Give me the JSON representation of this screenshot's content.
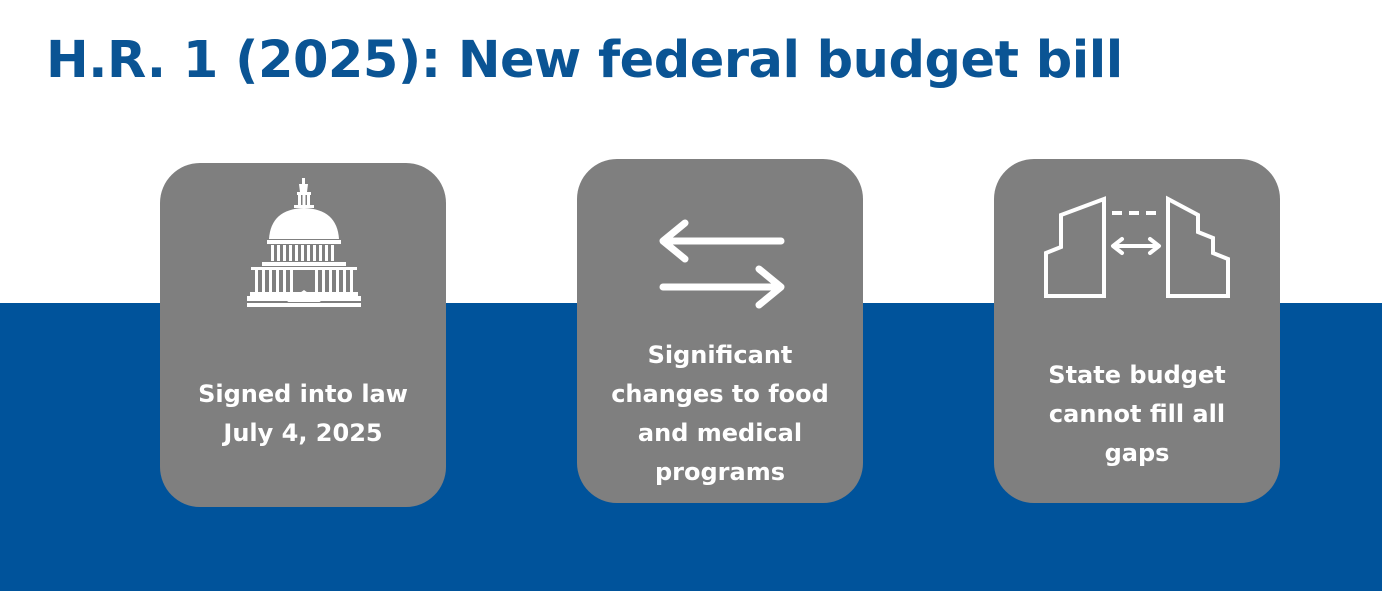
{
  "title": "H.R. 1 (2025): New federal budget bill",
  "colors": {
    "band": "#00539b",
    "title": "#0a5494",
    "card": "#7f7f7f",
    "text": "#ffffff"
  },
  "cards": [
    {
      "icon": "capitol-building-icon",
      "text": "Signed into law\nJuly 4, 2025"
    },
    {
      "icon": "exchange-arrows-icon",
      "text": "Significant\nchanges to food\nand medical\nprograms"
    },
    {
      "icon": "gap-bridge-icon",
      "text": "State budget\ncannot fill all\ngaps"
    }
  ]
}
